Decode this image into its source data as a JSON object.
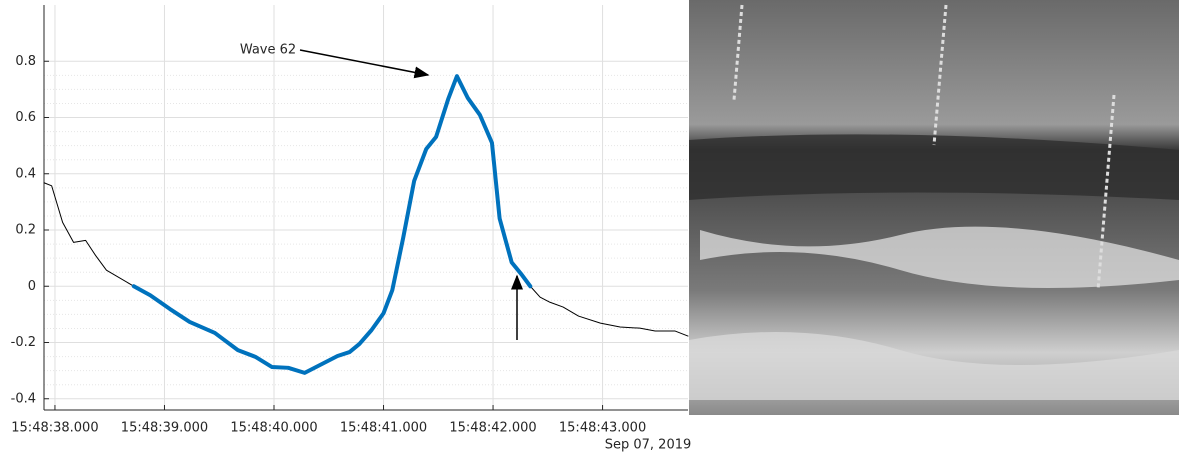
{
  "chart_data": {
    "type": "line",
    "annotation": "Wave 62",
    "xlabel": "Sep 07, 2019",
    "xlim": [
      37.9,
      43.78
    ],
    "ylim": [
      -0.44,
      1.0
    ],
    "xticks": [
      {
        "value": 38,
        "label": "15:48:38.000"
      },
      {
        "value": 39,
        "label": "15:48:39.000"
      },
      {
        "value": 40,
        "label": "15:48:40.000"
      },
      {
        "value": 41,
        "label": "15:48:41.000"
      },
      {
        "value": 42,
        "label": "15:48:42.000"
      },
      {
        "value": 43,
        "label": "15:48:43.000"
      }
    ],
    "yticks": [
      -0.4,
      -0.2,
      0,
      0.2,
      0.4,
      0.6,
      0.8
    ],
    "grid": true,
    "series": [
      {
        "color": "#000000",
        "line_width": 1,
        "x": [
          37.9,
          37.97,
          38.07,
          38.17,
          38.28,
          38.37,
          38.47,
          38.72,
          38.87,
          39.05,
          39.23,
          39.46,
          39.67,
          39.83,
          39.98,
          40.13,
          40.28,
          40.42,
          40.58,
          40.69,
          40.78,
          40.89,
          41.0,
          41.08,
          41.18,
          41.28,
          41.39,
          41.48,
          41.59,
          41.67,
          41.77,
          41.88,
          41.99,
          42.06,
          42.17,
          42.26,
          42.34,
          42.43,
          42.52,
          42.64,
          42.78,
          42.98,
          43.16,
          43.34,
          43.48,
          43.57,
          43.66,
          43.78
        ],
        "values": [
          0.368,
          0.357,
          0.227,
          0.156,
          0.163,
          0.11,
          0.057,
          0,
          -0.032,
          -0.081,
          -0.127,
          -0.166,
          -0.227,
          -0.251,
          -0.287,
          -0.29,
          -0.308,
          -0.28,
          -0.248,
          -0.234,
          -0.205,
          -0.156,
          -0.096,
          -0.014,
          0.173,
          0.375,
          0.488,
          0.531,
          0.665,
          0.747,
          0.669,
          0.609,
          0.51,
          0.241,
          0.085,
          0.042,
          0,
          -0.039,
          -0.057,
          -0.074,
          -0.106,
          -0.131,
          -0.145,
          -0.149,
          -0.159,
          -0.159,
          -0.159,
          -0.177
        ]
      },
      {
        "color": "#0072bd",
        "line_width": 4,
        "x": [
          38.72,
          38.87,
          39.05,
          39.23,
          39.46,
          39.67,
          39.83,
          39.98,
          40.13,
          40.28,
          40.42,
          40.58,
          40.69,
          40.78,
          40.89,
          41.0,
          41.08,
          41.18,
          41.28,
          41.39,
          41.48,
          41.59,
          41.67,
          41.77,
          41.88,
          41.99,
          42.06,
          42.17,
          42.26,
          42.34
        ],
        "values": [
          0,
          -0.032,
          -0.081,
          -0.127,
          -0.166,
          -0.227,
          -0.251,
          -0.287,
          -0.29,
          -0.308,
          -0.28,
          -0.248,
          -0.234,
          -0.205,
          -0.156,
          -0.096,
          -0.014,
          0.173,
          0.375,
          0.488,
          0.531,
          0.665,
          0.747,
          0.669,
          0.609,
          0.51,
          0.241,
          0.085,
          0.042,
          0
        ]
      }
    ]
  }
}
